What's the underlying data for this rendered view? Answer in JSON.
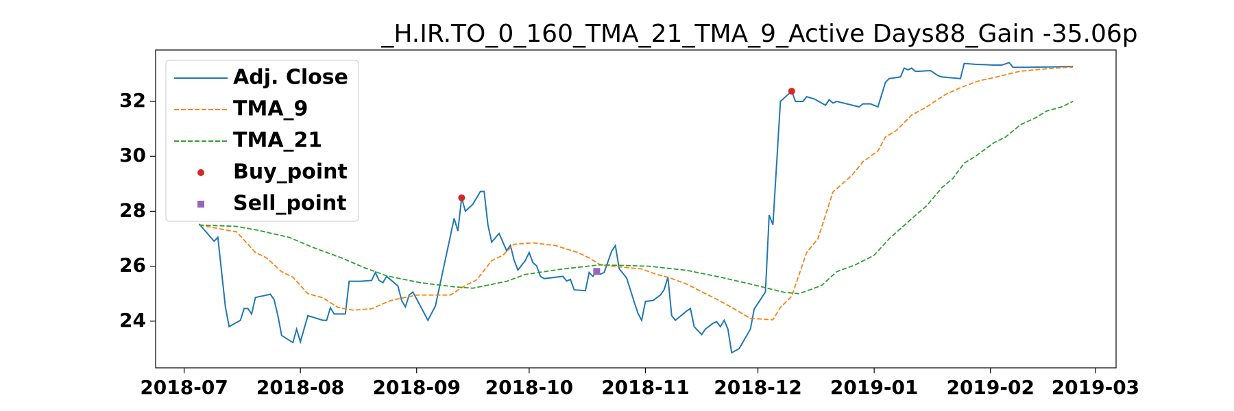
{
  "chart_data": {
    "type": "line",
    "title": "_H.IR.TO_0_160_TMA_21_TMA_9_Active Days88_Gain -35.06p",
    "xlim": [
      -7.6,
      248.5
    ],
    "xticks": [
      {
        "value": 0,
        "label": "2018-07"
      },
      {
        "value": 31,
        "label": "2018-08"
      },
      {
        "value": 62,
        "label": "2018-09"
      },
      {
        "value": 92,
        "label": "2018-10"
      },
      {
        "value": 123,
        "label": "2018-11"
      },
      {
        "value": 153,
        "label": "2018-12"
      },
      {
        "value": 184,
        "label": "2019-01"
      },
      {
        "value": 215,
        "label": "2019-02"
      },
      {
        "value": 243,
        "label": "2019-03"
      }
    ],
    "ylim": [
      22.3,
      33.87
    ],
    "yticks": [
      24,
      26,
      28,
      30,
      32
    ],
    "grid": false,
    "legend": "upper left",
    "series": [
      {
        "name": "Adj. Close",
        "color": "#1f77b4",
        "linestyle": "solid",
        "x": [
          4,
          8,
          9,
          11,
          12,
          15,
          16,
          17,
          18,
          19,
          22,
          23,
          24,
          25,
          26,
          29,
          30,
          31,
          33,
          37,
          38,
          39,
          40,
          43,
          44,
          47,
          50,
          51,
          52,
          53,
          54,
          57,
          58,
          59,
          60,
          61,
          63,
          65,
          67,
          72,
          73,
          74,
          75,
          77,
          79,
          80,
          81,
          82,
          84,
          86,
          87,
          88,
          89,
          91,
          92,
          93,
          94,
          95,
          96,
          101,
          102,
          103,
          104,
          107,
          108,
          109,
          110,
          111,
          112,
          114,
          115,
          116,
          118,
          120,
          121,
          122,
          123,
          125,
          127,
          128,
          129,
          130,
          131,
          134,
          135,
          136,
          138,
          139,
          141,
          142,
          143,
          144,
          145,
          146,
          148,
          151,
          152,
          155,
          156,
          157,
          159,
          162,
          163,
          165,
          166,
          168,
          170,
          171,
          172,
          173,
          174,
          180,
          181,
          183,
          185,
          187,
          188,
          191,
          192,
          193,
          194,
          195,
          199,
          201,
          202,
          207,
          208,
          211,
          216,
          218,
          220,
          221,
          225,
          237
        ],
        "values": [
          27.54,
          26.91,
          27.05,
          24.52,
          23.8,
          24.03,
          24.46,
          24.46,
          24.26,
          24.86,
          24.95,
          24.98,
          24.78,
          24.2,
          23.48,
          23.22,
          23.71,
          23.25,
          24.2,
          24.03,
          24.03,
          24.49,
          24.26,
          24.26,
          25.45,
          25.45,
          25.48,
          25.77,
          25.48,
          25.4,
          25.63,
          25.28,
          24.75,
          24.52,
          24.95,
          25.06,
          24.55,
          24.03,
          24.55,
          27.74,
          27.28,
          28.49,
          28.0,
          28.26,
          28.72,
          28.72,
          27.51,
          26.88,
          27.19,
          26.56,
          26.76,
          26.21,
          25.86,
          26.21,
          26.5,
          26.13,
          26.01,
          25.63,
          25.55,
          25.63,
          25.46,
          25.52,
          25.14,
          25.11,
          25.77,
          25.63,
          25.83,
          25.71,
          25.77,
          26.55,
          26.75,
          25.91,
          25.57,
          24.7,
          24.29,
          24.03,
          24.72,
          24.75,
          24.95,
          25.15,
          25.6,
          24.2,
          24.03,
          24.37,
          24.46,
          23.8,
          23.51,
          23.71,
          23.92,
          23.98,
          23.8,
          24.03,
          23.71,
          22.85,
          23.0,
          23.71,
          24.44,
          25.06,
          27.86,
          27.51,
          32.0,
          32.37,
          32.0,
          32.0,
          32.17,
          32.09,
          31.94,
          31.86,
          32.06,
          31.94,
          32.0,
          31.8,
          31.91,
          31.91,
          31.8,
          32.69,
          32.83,
          32.89,
          33.21,
          33.15,
          33.21,
          33.09,
          33.12,
          32.94,
          32.89,
          32.83,
          33.38,
          33.35,
          33.32,
          33.32,
          33.41,
          33.24,
          33.24,
          33.27
        ]
      },
      {
        "name": "TMA_9",
        "color": "#ff7f0e",
        "linestyle": "dashed",
        "x": [
          4,
          14,
          19,
          22,
          26,
          29,
          33,
          37,
          41,
          45,
          50,
          55,
          62,
          71,
          75,
          78,
          82,
          85,
          88,
          93,
          99,
          105,
          108,
          111,
          118,
          122,
          126,
          129,
          134,
          139,
          142,
          146,
          151,
          157,
          159,
          162,
          166,
          169,
          173,
          178,
          181,
          185,
          187,
          190,
          194,
          198,
          203,
          207,
          212,
          217,
          223,
          231,
          237
        ],
        "values": [
          27.5,
          27.25,
          26.5,
          26.3,
          25.8,
          25.6,
          25.0,
          24.85,
          24.5,
          24.4,
          24.45,
          24.75,
          24.95,
          24.95,
          25.3,
          25.5,
          26.2,
          26.4,
          26.8,
          26.85,
          26.75,
          26.5,
          26.3,
          26.05,
          25.95,
          25.9,
          25.7,
          25.6,
          25.35,
          25.0,
          24.8,
          24.5,
          24.1,
          24.05,
          24.5,
          24.9,
          26.5,
          27.0,
          28.7,
          29.3,
          29.8,
          30.2,
          30.7,
          30.95,
          31.5,
          31.8,
          32.25,
          32.5,
          32.75,
          32.9,
          33.1,
          33.2,
          33.25
        ]
      },
      {
        "name": "TMA_21",
        "color": "#2ca02c",
        "linestyle": "dashed",
        "x": [
          4,
          14,
          20,
          28,
          35,
          42,
          48,
          54,
          63,
          72,
          77,
          86,
          91,
          101,
          111,
          124,
          134,
          143,
          151,
          160,
          164,
          170,
          174,
          179,
          184,
          188,
          195,
          198,
          202,
          205,
          208,
          211,
          216,
          219,
          223,
          227,
          230,
          234,
          237
        ],
        "values": [
          27.5,
          27.45,
          27.3,
          27.05,
          26.65,
          26.3,
          25.95,
          25.65,
          25.4,
          25.25,
          25.2,
          25.45,
          25.7,
          25.9,
          26.05,
          26.0,
          25.85,
          25.6,
          25.35,
          25.05,
          25.0,
          25.3,
          25.8,
          26.05,
          26.4,
          27.0,
          27.85,
          28.2,
          28.85,
          29.2,
          29.75,
          30.0,
          30.5,
          30.7,
          31.15,
          31.4,
          31.65,
          31.8,
          32.0
        ]
      },
      {
        "name": "Buy_point",
        "color": "#d62728",
        "marker": "circle",
        "x": [
          74,
          162
        ],
        "values": [
          28.49,
          32.37
        ]
      },
      {
        "name": "Sell_point",
        "color": "#9467bd",
        "marker": "square",
        "x": [
          110
        ],
        "values": [
          25.81
        ]
      }
    ]
  }
}
